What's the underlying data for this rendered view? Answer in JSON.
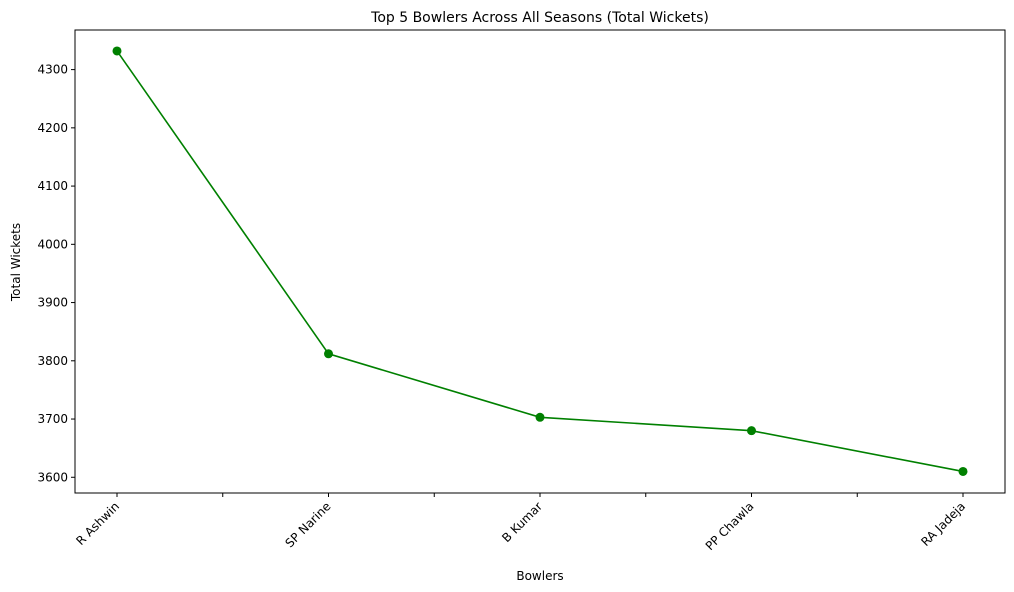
{
  "chart_data": {
    "type": "line",
    "title": "Top 5 Bowlers Across All Seasons (Total Wickets)",
    "xlabel": "Bowlers",
    "ylabel": "Total Wickets",
    "categories": [
      "R Ashwin",
      "SP Narine",
      "B Kumar",
      "PP Chawla",
      "RA Jadeja"
    ],
    "series": [
      {
        "values": [
          4332,
          3812,
          3703,
          3680,
          3610
        ],
        "color": "#008000"
      }
    ],
    "ylim": [
      3573,
      4368
    ],
    "yticks": [
      3600,
      3700,
      3800,
      3900,
      4000,
      4100,
      4200,
      4300
    ],
    "grid": false,
    "marker": "circle"
  }
}
